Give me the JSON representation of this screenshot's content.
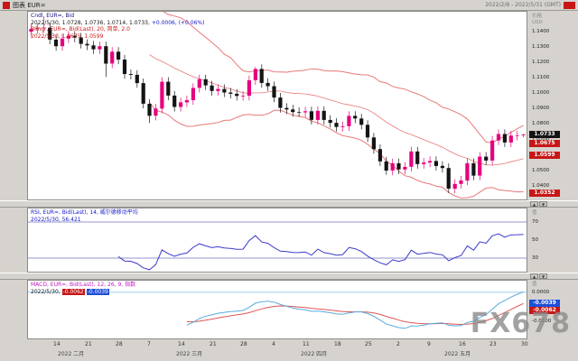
{
  "window": {
    "title": "图表 EUR=",
    "date_range": "2022/2/8 - 2022/5/31 (GMT)"
  },
  "watermark": "FX678",
  "colors": {
    "up": "#e6007e",
    "down": "#141414",
    "bollinger": "#e87878",
    "rsi": "#3a3ace",
    "macd": "#58abdf",
    "signal": "#e05555",
    "zero_line": "#a9d7f2",
    "ref_line": "#7070c0"
  },
  "price_panel": {
    "legend_series": "Cndl, EUR=, Bid",
    "legend_ohlc": "2022/5/30, 1.0728, 1.0736, 1.0714, 1.0733,",
    "legend_change": "+0.0006, (+0.06%)",
    "legend_boll": "Bllngr, EUR=, Bid(Last), 20, 简单, 2.0",
    "legend_boll_values": "2022/5/30, 1.0675, 1.0599",
    "axis_unit1": "价格",
    "axis_unit2": "USD",
    "ticks": [
      "1.1400",
      "1.1300",
      "1.1200",
      "1.1100",
      "1.1000",
      "1.0900",
      "1.0800",
      "1.0700",
      "1.0600",
      "1.0500",
      "1.0400"
    ],
    "highlights": [
      {
        "label": "1.0733",
        "value": 1.0733,
        "bg": "#141414"
      },
      {
        "label": "1.0675",
        "value": 1.0675,
        "bg": "#c81616"
      },
      {
        "label": "1.0599",
        "value": 1.0599,
        "bg": "#c81616"
      },
      {
        "label": "1.0352",
        "value": 1.0352,
        "bg": "#c81616"
      }
    ]
  },
  "rsi_panel": {
    "legend_line1": "RSI, EUR=, Bid(Last), 14, 威尔德移动平均",
    "legend_line2": "2022/5/30, 56.421",
    "axis_unit": "值",
    "ticks": [
      {
        "label": "70",
        "value": 70
      },
      {
        "label": "50",
        "value": 50
      },
      {
        "label": "30",
        "value": 30
      }
    ]
  },
  "macd_panel": {
    "legend_line1": "MACD, EUR=, Bid(Last), 12, 26, 9, 指数",
    "legend_date": "2022/5/30,",
    "signal_value": "-0.0062",
    "macd_value": "-0.0039",
    "axis_unit": "值",
    "ticks": [
      {
        "label": "0.0000",
        "value": 0
      },
      {
        "label": "-0.0100",
        "value": -0.01
      }
    ],
    "highlights": [
      {
        "label": "-0.0039",
        "value": -0.0039,
        "bg": "#1f4fd8"
      },
      {
        "label": "-0.0062",
        "value": -0.0062,
        "bg": "#c81616"
      }
    ]
  },
  "separators": {
    "up_arrow": "▲",
    "down_arrow": "▼"
  },
  "date_axis": {
    "day_ticks": [
      {
        "index": 4,
        "label": "14"
      },
      {
        "index": 9,
        "label": "21"
      },
      {
        "index": 14,
        "label": "28"
      },
      {
        "index": 19,
        "label": "7"
      },
      {
        "index": 24,
        "label": "14"
      },
      {
        "index": 29,
        "label": "21"
      },
      {
        "index": 34,
        "label": "28"
      },
      {
        "index": 39,
        "label": "4"
      },
      {
        "index": 44,
        "label": "11"
      },
      {
        "index": 49,
        "label": "18"
      },
      {
        "index": 54,
        "label": "25"
      },
      {
        "index": 59,
        "label": "2"
      },
      {
        "index": 64,
        "label": "9"
      },
      {
        "index": 69,
        "label": "16"
      },
      {
        "index": 74,
        "label": "23"
      },
      {
        "index": 79,
        "label": "30"
      }
    ],
    "month_labels": [
      {
        "index": 7,
        "label": "2022 二月"
      },
      {
        "index": 26,
        "label": "2022 三月"
      },
      {
        "index": 46,
        "label": "2022 四月"
      },
      {
        "index": 69,
        "label": "2022 五月"
      }
    ]
  },
  "chart_data": {
    "type": "candlestick",
    "symbol": "EUR=",
    "field": "Bid",
    "interval": "daily",
    "price_axis_range": [
      1.031,
      1.153
    ],
    "candles": [
      [
        1.14,
        1.1448,
        1.137,
        1.1418
      ],
      [
        1.1418,
        1.1453,
        1.1388,
        1.1423
      ],
      [
        1.1423,
        1.1495,
        1.1393,
        1.1426
      ],
      [
        1.1426,
        1.1456,
        1.1319,
        1.1349
      ],
      [
        1.1349,
        1.1379,
        1.1276,
        1.1306
      ],
      [
        1.1306,
        1.1386,
        1.1276,
        1.1356
      ],
      [
        1.1356,
        1.1404,
        1.1326,
        1.1374
      ],
      [
        1.1374,
        1.1404,
        1.1332,
        1.1362
      ],
      [
        1.1362,
        1.1392,
        1.1291,
        1.1321
      ],
      [
        1.1321,
        1.1351,
        1.1281,
        1.1311
      ],
      [
        1.1311,
        1.1341,
        1.1256,
        1.1286
      ],
      [
        1.1286,
        1.1336,
        1.1256,
        1.1306
      ],
      [
        1.1306,
        1.1336,
        1.1106,
        1.1193
      ],
      [
        1.1193,
        1.13,
        1.1163,
        1.127
      ],
      [
        1.127,
        1.13,
        1.1189,
        1.1219
      ],
      [
        1.1219,
        1.1249,
        1.1095,
        1.1125
      ],
      [
        1.1125,
        1.1155,
        1.109,
        1.112
      ],
      [
        1.112,
        1.115,
        1.1036,
        1.1066
      ],
      [
        1.1066,
        1.1096,
        1.0902,
        1.0932
      ],
      [
        1.0932,
        1.0962,
        1.0806,
        1.0854
      ],
      [
        1.0854,
        1.0931,
        1.0824,
        1.0901
      ],
      [
        1.0901,
        1.1105,
        1.0871,
        1.1075
      ],
      [
        1.1075,
        1.1105,
        1.0955,
        1.0985
      ],
      [
        1.0985,
        1.1015,
        1.0881,
        1.0911
      ],
      [
        1.0911,
        1.0971,
        1.0881,
        1.0941
      ],
      [
        1.0941,
        1.0985,
        1.0911,
        1.0955
      ],
      [
        1.0955,
        1.1065,
        1.0925,
        1.1035
      ],
      [
        1.1035,
        1.1121,
        1.1005,
        1.1091
      ],
      [
        1.1091,
        1.1121,
        1.1021,
        1.1051
      ],
      [
        1.1051,
        1.1081,
        1.0985,
        1.1015
      ],
      [
        1.1015,
        1.1058,
        1.0985,
        1.1028
      ],
      [
        1.1028,
        1.1058,
        1.0975,
        1.1005
      ],
      [
        1.1005,
        1.1035,
        1.0967,
        1.0997
      ],
      [
        1.0997,
        1.1027,
        1.0953,
        1.0983
      ],
      [
        1.0983,
        1.1014,
        1.0953,
        1.0984
      ],
      [
        1.0984,
        1.1115,
        1.0954,
        1.1085
      ],
      [
        1.1085,
        1.1171,
        1.1055,
        1.1158
      ],
      [
        1.1158,
        1.1188,
        1.1037,
        1.1067
      ],
      [
        1.1067,
        1.1097,
        1.1016,
        1.1046
      ],
      [
        1.1046,
        1.1076,
        1.0942,
        1.0972
      ],
      [
        1.0972,
        1.1002,
        1.0875,
        1.0905
      ],
      [
        1.0905,
        1.0935,
        1.0865,
        1.0895
      ],
      [
        1.0895,
        1.0925,
        1.0848,
        1.0878
      ],
      [
        1.0878,
        1.0908,
        1.0846,
        1.0876
      ],
      [
        1.0876,
        1.0913,
        1.0846,
        1.0883
      ],
      [
        1.0883,
        1.0913,
        1.0797,
        1.0827
      ],
      [
        1.0827,
        1.0916,
        1.0797,
        1.0886
      ],
      [
        1.0886,
        1.0916,
        1.0797,
        1.0827
      ],
      [
        1.0827,
        1.0857,
        1.0778,
        1.0808
      ],
      [
        1.0808,
        1.0838,
        1.0751,
        1.0781
      ],
      [
        1.0781,
        1.0816,
        1.0751,
        1.0786
      ],
      [
        1.0786,
        1.0883,
        1.0756,
        1.0853
      ],
      [
        1.0853,
        1.0883,
        1.0806,
        1.0836
      ],
      [
        1.0836,
        1.0866,
        1.0765,
        1.0795
      ],
      [
        1.0795,
        1.0825,
        1.0683,
        1.0713
      ],
      [
        1.0713,
        1.0743,
        1.0607,
        1.0637
      ],
      [
        1.0637,
        1.0667,
        1.0527,
        1.0557
      ],
      [
        1.0557,
        1.0587,
        1.047,
        1.0498
      ],
      [
        1.0498,
        1.0575,
        1.0468,
        1.0545
      ],
      [
        1.0545,
        1.0575,
        1.0475,
        1.0505
      ],
      [
        1.0505,
        1.0552,
        1.0475,
        1.0522
      ],
      [
        1.0522,
        1.0652,
        1.0492,
        1.0622
      ],
      [
        1.0622,
        1.0652,
        1.051,
        1.054
      ],
      [
        1.054,
        1.058,
        1.051,
        1.055
      ],
      [
        1.055,
        1.059,
        1.052,
        1.056
      ],
      [
        1.056,
        1.059,
        1.0498,
        1.0528
      ],
      [
        1.0528,
        1.0558,
        1.0484,
        1.0514
      ],
      [
        1.0514,
        1.0544,
        1.0352,
        1.038
      ],
      [
        1.038,
        1.0441,
        1.035,
        1.0411
      ],
      [
        1.0411,
        1.0463,
        1.0381,
        1.0433
      ],
      [
        1.0433,
        1.0576,
        1.0403,
        1.0546
      ],
      [
        1.0546,
        1.0576,
        1.0435,
        1.0465
      ],
      [
        1.0465,
        1.0618,
        1.0435,
        1.0588
      ],
      [
        1.0588,
        1.0618,
        1.0533,
        1.0563
      ],
      [
        1.0563,
        1.0723,
        1.0533,
        1.0693
      ],
      [
        1.0693,
        1.0765,
        1.0663,
        1.0735
      ],
      [
        1.0735,
        1.0765,
        1.065,
        1.068
      ],
      [
        1.068,
        1.0755,
        1.065,
        1.0725
      ],
      [
        1.0725,
        1.0755,
        1.0695,
        1.0727
      ],
      [
        1.0728,
        1.0736,
        1.0714,
        1.0733
      ]
    ],
    "overlays": {
      "bollinger_bands": {
        "period": 20,
        "stdev": 2.0,
        "last_values": [
          1.0675,
          1.0599
        ]
      }
    },
    "indicators": [
      {
        "type": "rsi",
        "period": 14,
        "smoothing": "威尔德移动平均",
        "last": 56.421,
        "ref_levels": [
          70,
          30
        ],
        "range": [
          15,
          85
        ]
      },
      {
        "type": "macd",
        "fast": 12,
        "slow": 26,
        "signal": 9,
        "method": "指数",
        "last_macd": -0.0039,
        "last_signal": -0.0062,
        "range": [
          -0.016,
          0.004
        ]
      }
    ]
  }
}
